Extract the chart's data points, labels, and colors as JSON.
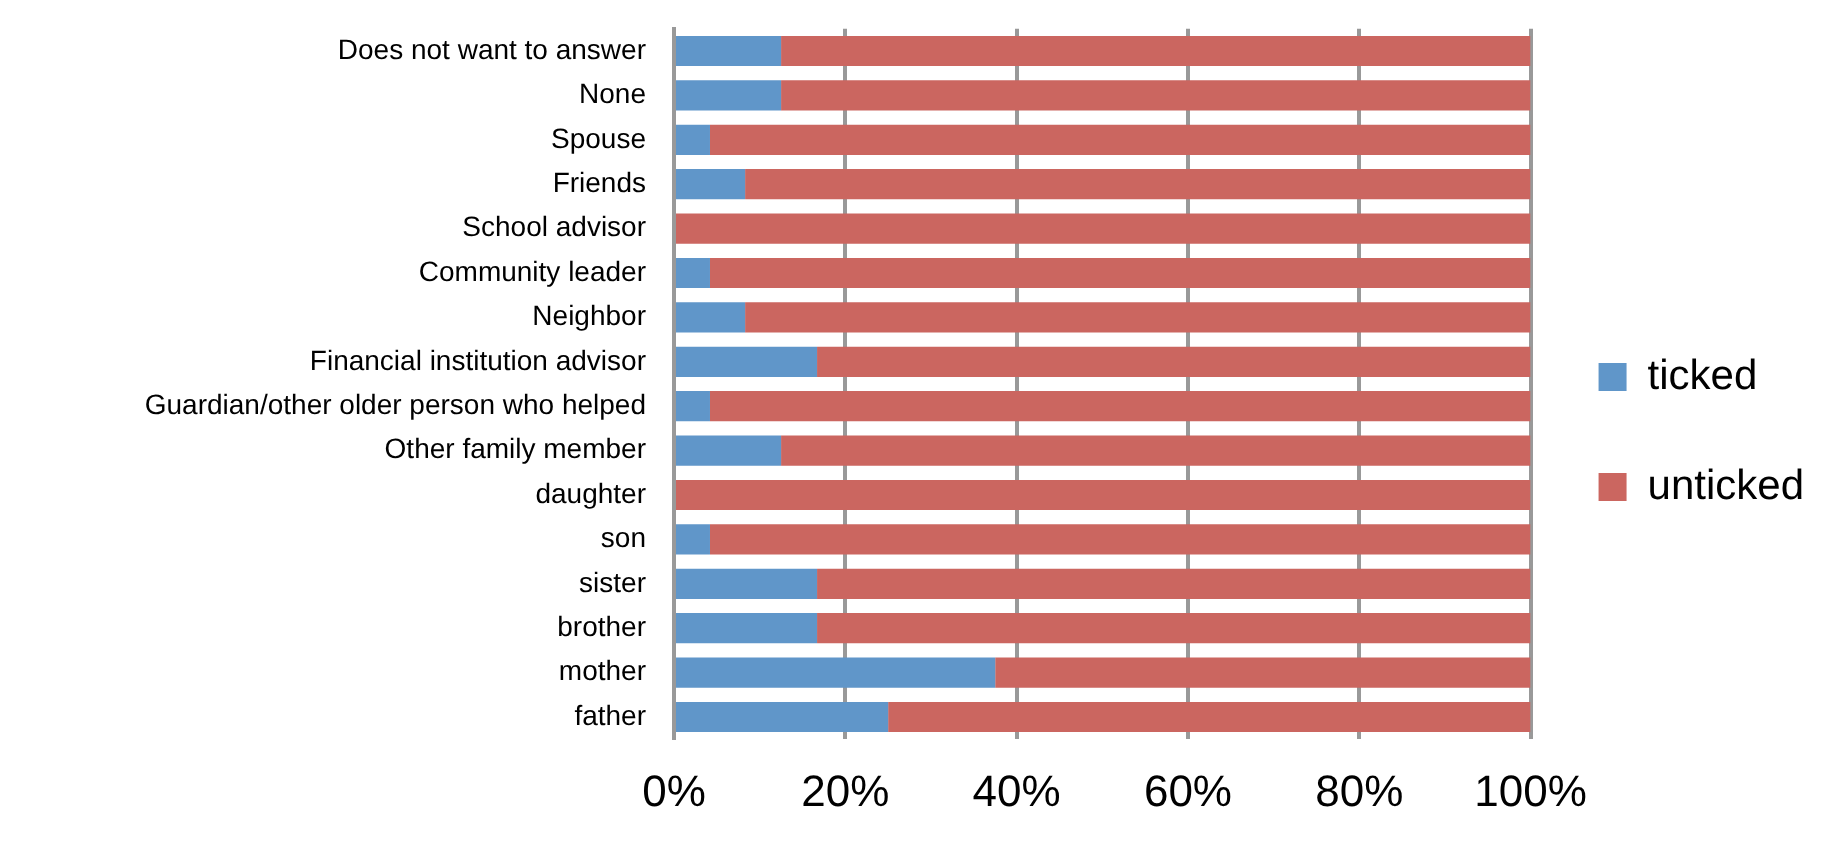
{
  "chart_data": {
    "type": "bar",
    "orientation": "horizontal",
    "stacked": true,
    "categories": [
      "Does not want to answer",
      "None",
      "Spouse",
      "Friends",
      "School advisor",
      "Community leader",
      "Neighbor",
      "Financial institution advisor",
      "Guardian/other older person who helped",
      "Other family member",
      "daughter",
      "son",
      "sister",
      "brother",
      "mother",
      "father"
    ],
    "series": [
      {
        "name": "ticked",
        "color": "#6096c9",
        "values": [
          12.5,
          12.5,
          4.2,
          8.3,
          0,
          4.2,
          8.3,
          16.7,
          4.2,
          12.5,
          0,
          4.2,
          16.7,
          16.7,
          37.5,
          25
        ]
      },
      {
        "name": "unticked",
        "color": "#cb6660",
        "values": [
          87.5,
          87.5,
          95.8,
          91.7,
          100,
          95.8,
          91.7,
          83.3,
          95.8,
          87.5,
          100,
          95.8,
          83.3,
          83.3,
          62.5,
          75
        ]
      }
    ],
    "xlim": [
      0,
      100
    ],
    "xticks": [
      {
        "value": 0,
        "label": "0%"
      },
      {
        "value": 20,
        "label": "20%"
      },
      {
        "value": 40,
        "label": "40%"
      },
      {
        "value": 60,
        "label": "60%"
      },
      {
        "value": 80,
        "label": "80%"
      },
      {
        "value": 100,
        "label": "100%"
      }
    ],
    "grid": "x",
    "legend": "right"
  }
}
